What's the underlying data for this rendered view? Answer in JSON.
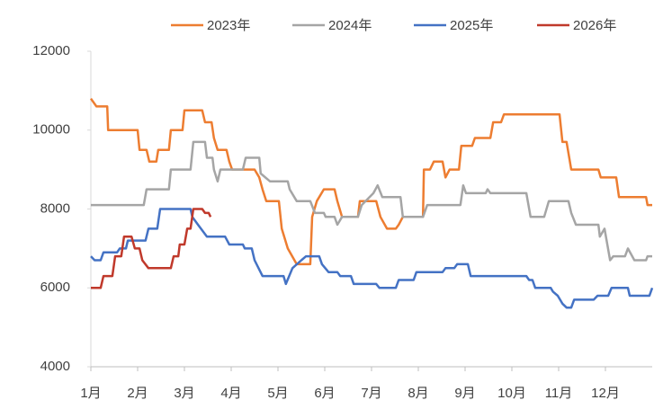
{
  "chart_data": {
    "type": "line",
    "xlim": [
      1,
      13
    ],
    "ylim": [
      4000,
      12000
    ],
    "yticks": [
      4000,
      6000,
      8000,
      10000,
      12000
    ],
    "xticks": [
      {
        "value": 1,
        "label": "1月"
      },
      {
        "value": 2,
        "label": "2月"
      },
      {
        "value": 3,
        "label": "3月"
      },
      {
        "value": 4,
        "label": "4月"
      },
      {
        "value": 5,
        "label": "5月"
      },
      {
        "value": 6,
        "label": "6月"
      },
      {
        "value": 7,
        "label": "7月"
      },
      {
        "value": 8,
        "label": "8月"
      },
      {
        "value": 9,
        "label": "9月"
      },
      {
        "value": 10,
        "label": "10月"
      },
      {
        "value": 11,
        "label": "11月"
      },
      {
        "value": 12,
        "label": "12月"
      }
    ],
    "legend": "top",
    "series": [
      {
        "name": "2023年",
        "color": "#ed7d31",
        "x": [
          1.0,
          1.12,
          1.35,
          1.37,
          2.0,
          2.04,
          2.19,
          2.25,
          2.4,
          2.44,
          2.67,
          2.71,
          2.96,
          3.0,
          3.38,
          3.44,
          3.58,
          3.63,
          3.71,
          3.9,
          3.96,
          4.02,
          4.5,
          4.6,
          4.67,
          4.75,
          5.02,
          5.08,
          5.21,
          5.4,
          5.69,
          5.73,
          5.83,
          5.98,
          6.21,
          6.27,
          6.37,
          6.71,
          6.75,
          7.1,
          7.19,
          7.33,
          7.52,
          7.58,
          7.67,
          8.1,
          8.12,
          8.25,
          8.33,
          8.52,
          8.58,
          8.67,
          8.87,
          8.92,
          9.15,
          9.21,
          9.54,
          9.6,
          9.77,
          9.83,
          11.02,
          11.08,
          11.17,
          11.27,
          11.85,
          11.9,
          12.23,
          12.29,
          12.87,
          12.9,
          13.0
        ],
        "values": [
          10800,
          10600,
          10600,
          10000,
          10000,
          9500,
          9500,
          9200,
          9200,
          9500,
          9500,
          10000,
          10000,
          10500,
          10500,
          10200,
          10200,
          9800,
          9500,
          9500,
          9200,
          9000,
          9000,
          8800,
          8500,
          8200,
          8200,
          7500,
          7000,
          6600,
          6600,
          7800,
          8200,
          8500,
          8500,
          8200,
          7800,
          7800,
          8200,
          8200,
          7800,
          7500,
          7500,
          7600,
          7800,
          7800,
          9000,
          9000,
          9200,
          9200,
          8800,
          9000,
          9000,
          9600,
          9600,
          9800,
          9800,
          10200,
          10200,
          10400,
          10400,
          9700,
          9700,
          9000,
          9000,
          8800,
          8800,
          8300,
          8300,
          8100,
          8100
        ]
      },
      {
        "name": "2024年",
        "color": "#a5a5a5",
        "x": [
          1.0,
          2.13,
          2.19,
          2.67,
          2.71,
          3.13,
          3.19,
          3.44,
          3.48,
          3.6,
          3.63,
          3.71,
          3.77,
          4.25,
          4.31,
          4.6,
          4.63,
          4.83,
          5.21,
          5.25,
          5.4,
          5.69,
          5.79,
          5.98,
          6.02,
          6.21,
          6.27,
          6.37,
          6.71,
          6.79,
          7.04,
          7.13,
          7.23,
          7.62,
          7.67,
          8.1,
          8.19,
          8.9,
          8.96,
          9.02,
          9.44,
          9.48,
          9.54,
          10.31,
          10.4,
          10.69,
          10.79,
          11.21,
          11.27,
          11.37,
          11.85,
          11.88,
          11.98,
          12.1,
          12.17,
          12.42,
          12.48,
          12.62,
          12.87,
          12.9,
          13.0
        ],
        "values": [
          8100,
          8100,
          8500,
          8500,
          9000,
          9000,
          9700,
          9700,
          9300,
          9300,
          9000,
          8700,
          9000,
          9000,
          9300,
          9300,
          8900,
          8700,
          8700,
          8500,
          8200,
          8200,
          7900,
          7900,
          7800,
          7800,
          7600,
          7800,
          7800,
          8100,
          8400,
          8600,
          8300,
          8300,
          7800,
          7800,
          8100,
          8100,
          8600,
          8400,
          8400,
          8500,
          8400,
          8400,
          7800,
          7800,
          8200,
          8200,
          7900,
          7600,
          7600,
          7300,
          7500,
          6700,
          6800,
          6800,
          7000,
          6700,
          6700,
          6800,
          6800
        ]
      },
      {
        "name": "2025年",
        "color": "#4472c4",
        "x": [
          1.0,
          1.08,
          1.21,
          1.27,
          1.56,
          1.62,
          1.75,
          1.79,
          2.17,
          2.23,
          2.42,
          2.48,
          3.13,
          3.17,
          3.29,
          3.48,
          3.87,
          3.96,
          4.25,
          4.29,
          4.44,
          4.5,
          4.67,
          5.12,
          5.17,
          5.31,
          5.5,
          5.6,
          5.88,
          5.94,
          6.08,
          6.27,
          6.33,
          6.56,
          6.62,
          7.1,
          7.17,
          7.52,
          7.58,
          7.9,
          7.96,
          8.52,
          8.58,
          8.77,
          8.83,
          9.06,
          9.12,
          10.31,
          10.37,
          10.44,
          10.5,
          10.83,
          10.88,
          10.98,
          11.08,
          11.17,
          11.27,
          11.33,
          11.75,
          11.83,
          12.06,
          12.13,
          12.48,
          12.52,
          12.94,
          13.0
        ],
        "values": [
          6800,
          6700,
          6700,
          6900,
          6900,
          7000,
          7000,
          7200,
          7200,
          7500,
          7500,
          8000,
          8000,
          7800,
          7600,
          7300,
          7300,
          7100,
          7100,
          7000,
          7000,
          6700,
          6300,
          6300,
          6100,
          6500,
          6700,
          6800,
          6800,
          6600,
          6400,
          6400,
          6300,
          6300,
          6100,
          6100,
          6000,
          6000,
          6200,
          6200,
          6400,
          6400,
          6500,
          6500,
          6600,
          6600,
          6300,
          6300,
          6200,
          6200,
          6000,
          6000,
          5900,
          5800,
          5600,
          5500,
          5500,
          5700,
          5700,
          5800,
          5800,
          6000,
          6000,
          5800,
          5800,
          6000
        ]
      },
      {
        "name": "2026年",
        "color": "#c0392b",
        "x": [
          1.0,
          1.21,
          1.27,
          1.46,
          1.52,
          1.65,
          1.71,
          1.87,
          1.94,
          2.04,
          2.1,
          2.23,
          2.71,
          2.77,
          2.87,
          2.9,
          3.0,
          3.06,
          3.13,
          3.19,
          3.38,
          3.44,
          3.52,
          3.56
        ],
        "values": [
          6000,
          6000,
          6300,
          6300,
          6800,
          6800,
          7300,
          7300,
          7000,
          7000,
          6700,
          6500,
          6500,
          6800,
          6800,
          7100,
          7100,
          7500,
          7500,
          8000,
          8000,
          7900,
          7900,
          7800
        ]
      }
    ]
  }
}
